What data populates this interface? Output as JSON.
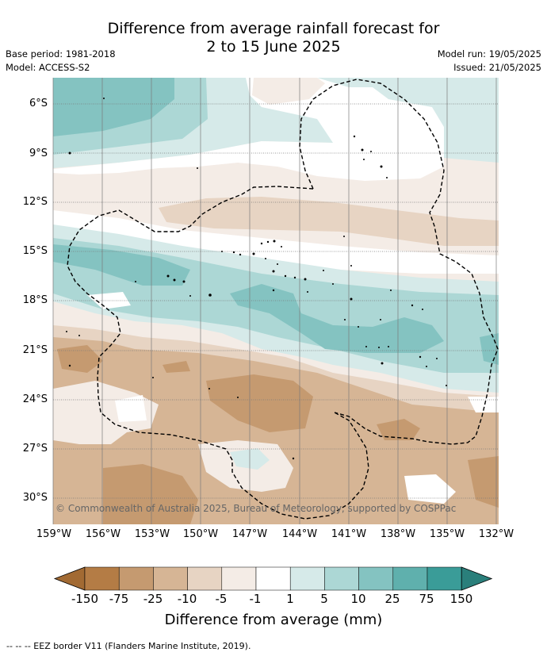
{
  "title_line1": "Difference from average rainfall forecast for",
  "title_line2": "2 to 15 June 2025",
  "base_period": "Base period: 1981-2018",
  "model": "Model: ACCESS-S2",
  "model_run": "Model run: 19/05/2025",
  "issued": "Issued: 21/05/2025",
  "copyright": "© Commonwealth of Australia 2025, Bureau of Meteorology, supported by COSPPac",
  "lat_labels": [
    "6°S",
    "9°S",
    "12°S",
    "15°S",
    "18°S",
    "21°S",
    "24°S",
    "27°S",
    "30°S"
  ],
  "lon_labels": [
    "159°W",
    "156°W",
    "153°W",
    "150°W",
    "147°W",
    "144°W",
    "141°W",
    "138°W",
    "135°W",
    "132°W"
  ],
  "colorbar": {
    "ticks": [
      "-150",
      "-75",
      "-25",
      "-10",
      "-5",
      "-1",
      "1",
      "5",
      "10",
      "25",
      "75",
      "150"
    ],
    "colors": [
      "#a26a33",
      "#b47c45",
      "#c59a70",
      "#d6b595",
      "#e7d4c3",
      "#f4ece6",
      "#ffffff",
      "#d6eae9",
      "#acd7d5",
      "#84c3c1",
      "#5fb0ad",
      "#3a9c98",
      "#2a7f7b"
    ],
    "title": "Difference from average (mm)"
  },
  "legend_note": "-- -- -- EEZ border V11 (Flanders Marine Institute, 2019)."
}
